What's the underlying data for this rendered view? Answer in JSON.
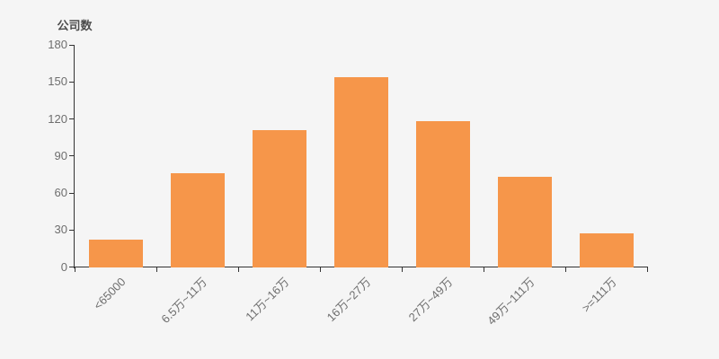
{
  "chart_data": {
    "type": "bar",
    "title": "公司数",
    "ylabel": "公司数",
    "xlabel": "",
    "categories": [
      "<65000",
      "6.5万~11万",
      "11万~16万",
      "16万~27万",
      "27万~49万",
      "49万~111万",
      ">=111万"
    ],
    "values": [
      22,
      76,
      111,
      154,
      118,
      73,
      27
    ],
    "ylim": [
      0,
      180
    ],
    "yticks": [
      0,
      30,
      60,
      90,
      120,
      150,
      180
    ],
    "grid": "off",
    "legend": "none",
    "colors": {
      "bar": "#f6964a",
      "axis": "#333333",
      "tick_label": "#6e6e6e",
      "title": "#4d4d4d",
      "background": "#f5f5f5"
    }
  }
}
